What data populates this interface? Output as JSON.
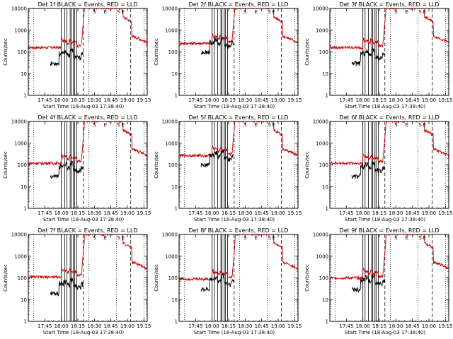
{
  "chart_data": {
    "type": "line",
    "ylabel": "Counts/sec",
    "xlabel": "Start Time (18-Aug-03 17:38:40)",
    "xlim_min": [
      -8,
      100
    ],
    "ylim": [
      1,
      10000
    ],
    "xticks_min": [
      7,
      22,
      37,
      52,
      67,
      82,
      97
    ],
    "xtick_labels": [
      "17:45",
      "18:00",
      "18:15",
      "18:30",
      "18:45",
      "19:00",
      "19:15"
    ],
    "ytick_values": [
      1,
      10,
      100,
      1000,
      10000
    ],
    "ytick_labels": [
      "1",
      "10",
      "100",
      "1000",
      "10000"
    ],
    "series_colors": {
      "events": "#000000",
      "lld": "#cc0000"
    },
    "dotted_lines_min": [
      -3,
      22,
      47,
      72,
      97
    ],
    "dashed_lines_min": [
      42,
      85
    ],
    "markers": [
      {
        "label": "S",
        "x": 52
      },
      {
        "label": "E",
        "x": 62
      },
      {
        "label": "S",
        "x": 74
      },
      {
        "label": "E",
        "x": 78
      }
    ],
    "panels": [
      {
        "title": "Det 1f BLACK = Events, RED = LLD",
        "lld_base": 160,
        "events_base": 60,
        "att_lines": [
          22,
          25,
          27,
          30,
          31,
          33,
          34,
          36
        ]
      },
      {
        "title": "Det 2f BLACK = Events, RED = LLD",
        "lld_base": 250,
        "events_base": 200,
        "att_lines": [
          22,
          24,
          27,
          30,
          31,
          33,
          34,
          36
        ]
      },
      {
        "title": "Det 3f BLACK = Events, RED = LLD",
        "lld_base": 160,
        "events_base": 60,
        "att_lines": [
          22,
          24,
          27,
          30,
          31,
          33,
          34,
          36
        ]
      },
      {
        "title": "Det 4f BLACK = Events, RED = LLD",
        "lld_base": 120,
        "events_base": 60,
        "att_lines": [
          22,
          25,
          27,
          30,
          31,
          33,
          34,
          36
        ]
      },
      {
        "title": "Det 5f BLACK = Events, RED = LLD",
        "lld_base": 270,
        "events_base": 200,
        "att_lines": [
          22,
          24,
          27,
          30,
          31,
          33,
          34,
          36
        ]
      },
      {
        "title": "Det 6f BLACK = Events, RED = LLD",
        "lld_base": 120,
        "events_base": 60,
        "att_lines": [
          22,
          24,
          27,
          30,
          31,
          33,
          34,
          36
        ]
      },
      {
        "title": "Det 7f BLACK = Events, RED = LLD",
        "lld_base": 110,
        "events_base": 40,
        "att_lines": [
          22,
          25,
          27,
          30,
          31,
          33,
          34,
          36
        ]
      },
      {
        "title": "Det 8f BLACK = Events, RED = LLD",
        "lld_base": 90,
        "events_base": 60,
        "att_lines": [
          22,
          24,
          27,
          30,
          31,
          33,
          34,
          36
        ]
      },
      {
        "title": "Det 9f BLACK = Events, RED = LLD",
        "lld_base": 100,
        "events_base": 60,
        "att_lines": [
          22,
          24,
          27,
          30,
          31,
          33,
          34,
          36
        ]
      }
    ]
  }
}
